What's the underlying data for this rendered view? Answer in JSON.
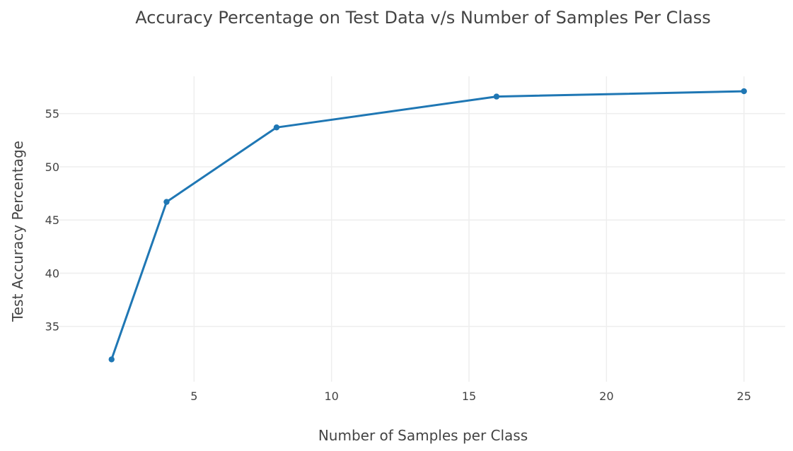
{
  "chart_data": {
    "type": "line",
    "title": "Accuracy Percentage on Test Data v/s Number of Samples Per Class",
    "xlabel": "Number of Samples per Class",
    "ylabel": "Test Accuracy Percentage",
    "xlim": [
      0,
      26.5
    ],
    "ylim": [
      29.8,
      58.5
    ],
    "x_ticks": [
      5,
      10,
      15,
      20,
      25
    ],
    "y_ticks": [
      35,
      40,
      45,
      50,
      55
    ],
    "grid": true,
    "legend": "none",
    "series": [
      {
        "x": [
          2,
          4,
          8,
          16,
          25
        ],
        "y": [
          31.9,
          46.7,
          53.7,
          56.6,
          57.1
        ],
        "color": "#1f77b4"
      }
    ]
  }
}
